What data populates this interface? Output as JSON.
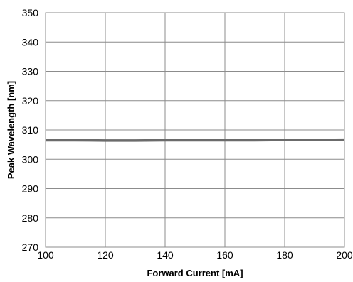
{
  "chart_data": {
    "type": "line",
    "title": "",
    "xlabel": "Forward Current [mA]",
    "ylabel": "Peak Wavelength [nm]",
    "xlim": [
      100,
      200
    ],
    "ylim": [
      270,
      350
    ],
    "xticks": [
      100,
      120,
      140,
      160,
      180,
      200
    ],
    "yticks": [
      270,
      280,
      290,
      300,
      310,
      320,
      330,
      340,
      350
    ],
    "grid": true,
    "legend": "none",
    "series": [
      {
        "color": "#6b6b6b",
        "x": [
          100,
          110,
          120,
          130,
          140,
          150,
          160,
          170,
          180,
          190,
          200
        ],
        "y": [
          306.5,
          306.5,
          306.4,
          306.4,
          306.5,
          306.5,
          306.5,
          306.5,
          306.6,
          306.6,
          306.7
        ]
      }
    ]
  },
  "colors": {
    "grid": "#8c8c8c",
    "frame": "#8c8c8c"
  }
}
